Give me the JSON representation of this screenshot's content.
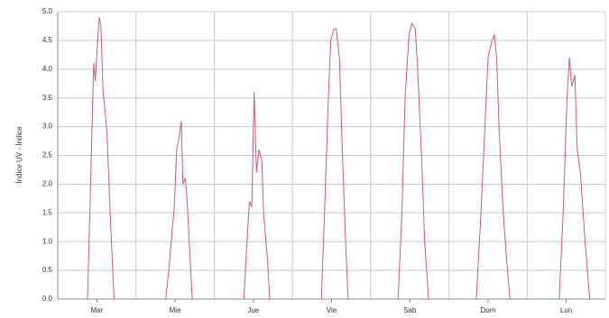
{
  "chart_data": {
    "type": "line",
    "y_label": "Índice UV - Índice",
    "categories": [
      "Mar",
      "Mie",
      "Jue",
      "Vie",
      "Sab",
      "Dom",
      "Lun"
    ],
    "xlim": [
      0,
      7
    ],
    "ylim": [
      0,
      5
    ],
    "yticks": [
      {
        "value": 0,
        "label": "0.0"
      },
      0.5,
      {
        "value": 1,
        "label": "1.0"
      },
      1.5,
      {
        "value": 2,
        "label": "2.0"
      },
      2.5,
      {
        "value": 3,
        "label": "3.0"
      },
      3.5,
      {
        "value": 4,
        "label": "4.0"
      },
      4.5,
      {
        "value": 5,
        "label": "5.0"
      }
    ],
    "grid": true,
    "series": [
      {
        "name": "Índice UV",
        "color": "#d4508a",
        "x": [
          0.38,
          0.42,
          0.46,
          0.48,
          0.51,
          0.53,
          0.55,
          0.58,
          0.61,
          0.63,
          0.67,
          0.72,
          null,
          1.38,
          1.42,
          1.45,
          1.49,
          1.52,
          1.55,
          1.58,
          1.6,
          1.63,
          1.65,
          1.68,
          1.72,
          null,
          2.38,
          2.41,
          2.45,
          2.48,
          2.51,
          2.54,
          2.57,
          2.61,
          2.63,
          2.68,
          2.71,
          null,
          3.37,
          3.41,
          3.46,
          3.49,
          3.53,
          3.56,
          3.6,
          3.64,
          3.68,
          3.71,
          null,
          4.35,
          4.4,
          4.44,
          4.49,
          4.53,
          4.57,
          4.6,
          4.65,
          4.69,
          4.74,
          null,
          5.35,
          5.41,
          5.46,
          5.5,
          5.55,
          5.58,
          5.61,
          5.64,
          5.69,
          5.73,
          5.78,
          null,
          6.41,
          6.46,
          6.51,
          6.54,
          6.57,
          6.61,
          6.64,
          6.68,
          6.74,
          6.8
        ],
        "values": [
          0,
          2.0,
          4.1,
          3.8,
          4.5,
          4.9,
          4.8,
          3.6,
          3.2,
          2.9,
          1.5,
          0,
          null,
          0,
          0.5,
          1.0,
          1.6,
          2.6,
          2.8,
          3.1,
          2.0,
          2.1,
          1.8,
          1.0,
          0,
          null,
          0,
          0.8,
          1.7,
          1.6,
          3.6,
          2.2,
          2.6,
          2.4,
          1.5,
          0.7,
          0,
          null,
          0,
          1.5,
          3.5,
          4.5,
          4.7,
          4.7,
          4.2,
          2.5,
          1.0,
          0,
          null,
          0,
          1.5,
          3.5,
          4.6,
          4.8,
          4.7,
          4.0,
          2.5,
          1.0,
          0,
          null,
          0,
          1.5,
          3.0,
          4.2,
          4.5,
          4.6,
          4.2,
          3.0,
          1.6,
          0.8,
          0,
          null,
          0,
          1.5,
          3.5,
          4.2,
          3.7,
          3.9,
          2.6,
          2.2,
          1.0,
          0
        ]
      }
    ]
  }
}
